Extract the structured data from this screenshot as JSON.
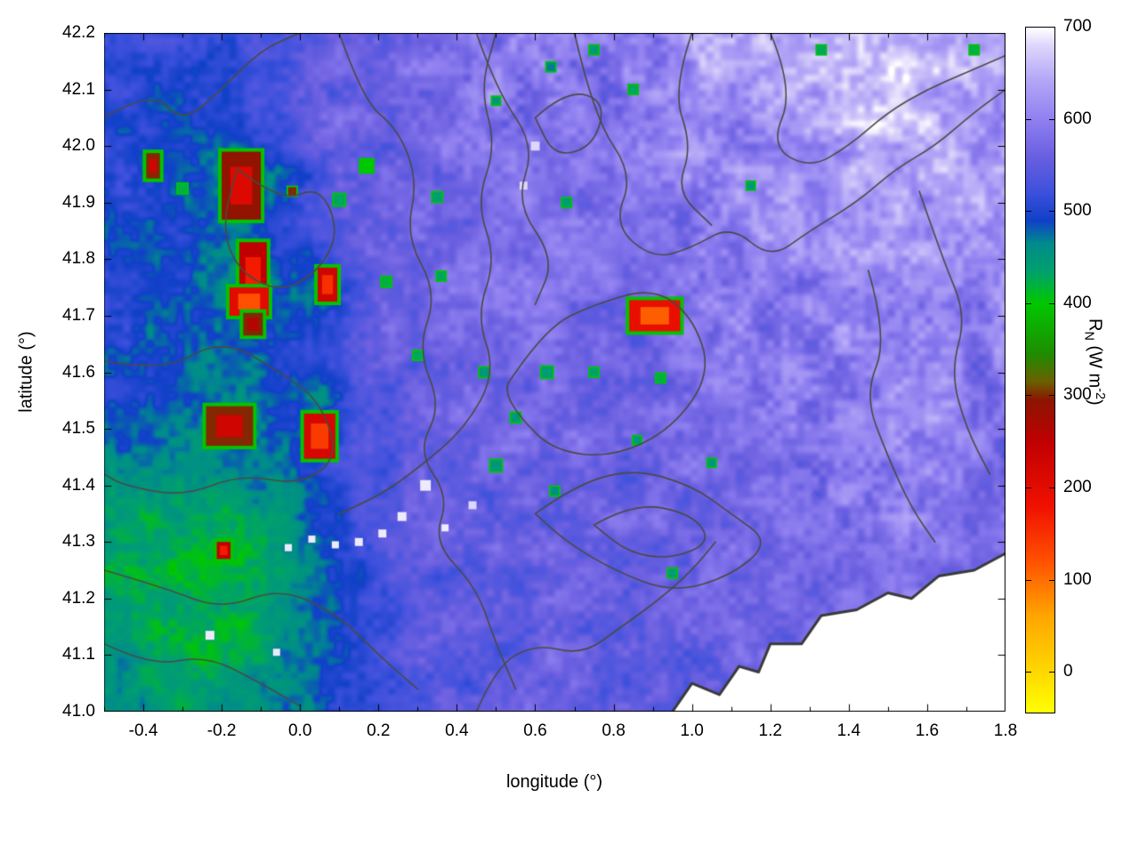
{
  "figure": {
    "xlabel": "longitude (°)",
    "ylabel": "latitude (°)",
    "cblabel": {
      "base": "R",
      "sub": "N",
      "mid": " (W m",
      "sup": "-2",
      "end": ")"
    }
  },
  "chart_data": {
    "type": "heatmap",
    "title": "",
    "xlabel": "longitude (°)",
    "ylabel": "latitude (°)",
    "xlim": [
      -0.5,
      1.8
    ],
    "ylim": [
      41.0,
      42.2
    ],
    "x_ticks": [
      "-0.4",
      "-0.2",
      "0.0",
      "0.2",
      "0.4",
      "0.6",
      "0.8",
      "1.0",
      "1.2",
      "1.4",
      "1.6",
      "1.8"
    ],
    "x_minor_step": 0.1,
    "y_ticks": [
      "41.0",
      "41.1",
      "41.2",
      "41.3",
      "41.4",
      "41.5",
      "41.6",
      "41.7",
      "41.8",
      "41.9",
      "42.0",
      "42.1",
      "42.2"
    ],
    "grid_on": false,
    "legend": "none",
    "colorbar": {
      "label": "R_N (W m^-2)",
      "position": "right",
      "ticks": [
        "0",
        "100",
        "200",
        "300",
        "400",
        "500",
        "600",
        "700"
      ],
      "range": [
        -45,
        700
      ]
    },
    "color_stops": [
      [
        -45,
        "#ffff00"
      ],
      [
        0,
        "#ffd700"
      ],
      [
        60,
        "#ffa500"
      ],
      [
        120,
        "#ff5000"
      ],
      [
        180,
        "#f01000"
      ],
      [
        250,
        "#c00000"
      ],
      [
        295,
        "#8b1500"
      ],
      [
        315,
        "#6b6000"
      ],
      [
        345,
        "#1e8c00"
      ],
      [
        400,
        "#00c800"
      ],
      [
        435,
        "#00a06e"
      ],
      [
        465,
        "#008b8b"
      ],
      [
        490,
        "#1040c8"
      ],
      [
        520,
        "#3c50dc"
      ],
      [
        560,
        "#6a5fe0"
      ],
      [
        600,
        "#8f7ff0"
      ],
      [
        645,
        "#b6a9f7"
      ],
      [
        680,
        "#ded6fb"
      ],
      [
        700,
        "#ffffff"
      ]
    ],
    "grid": {
      "lon0": -0.45,
      "dlon": 0.1,
      "lat0": 42.15,
      "dlat": 0.1,
      "values": [
        [
          515,
          510,
          505,
          515,
          530,
          555,
          565,
          575,
          580,
          590,
          600,
          595,
          590,
          600,
          615,
          635,
          650,
          660,
          665,
          670,
          665,
          655,
          645
        ],
        [
          505,
          490,
          500,
          515,
          535,
          555,
          565,
          570,
          575,
          585,
          595,
          585,
          580,
          590,
          600,
          610,
          620,
          635,
          645,
          655,
          650,
          640,
          630
        ],
        [
          505,
          495,
          480,
          430,
          490,
          525,
          555,
          565,
          570,
          580,
          585,
          580,
          575,
          580,
          590,
          600,
          610,
          615,
          625,
          635,
          635,
          630,
          620
        ],
        [
          500,
          495,
          490,
          470,
          500,
          530,
          550,
          565,
          570,
          575,
          580,
          580,
          575,
          575,
          585,
          595,
          600,
          605,
          610,
          615,
          620,
          618,
          612
        ],
        [
          500,
          492,
          485,
          440,
          490,
          470,
          540,
          560,
          570,
          575,
          580,
          585,
          580,
          575,
          580,
          590,
          595,
          600,
          605,
          610,
          610,
          605,
          600
        ],
        [
          495,
          490,
          485,
          490,
          498,
          520,
          540,
          555,
          565,
          570,
          575,
          580,
          572,
          540,
          575,
          585,
          590,
          595,
          600,
          605,
          605,
          600,
          595
        ],
        [
          490,
          485,
          478,
          450,
          488,
          460,
          530,
          545,
          555,
          565,
          570,
          575,
          570,
          565,
          575,
          580,
          585,
          590,
          595,
          600,
          600,
          595,
          590
        ],
        [
          468,
          462,
          458,
          465,
          480,
          510,
          530,
          545,
          555,
          560,
          565,
          570,
          565,
          560,
          570,
          575,
          580,
          585,
          590,
          595,
          595,
          590,
          585
        ],
        [
          448,
          438,
          432,
          440,
          462,
          492,
          520,
          540,
          550,
          555,
          560,
          565,
          560,
          555,
          565,
          570,
          575,
          580,
          585,
          590,
          588,
          584,
          580
        ],
        [
          428,
          418,
          414,
          424,
          450,
          480,
          510,
          535,
          545,
          550,
          555,
          560,
          555,
          550,
          560,
          565,
          570,
          575,
          580,
          583,
          583,
          580,
          576
        ],
        [
          438,
          428,
          420,
          430,
          455,
          485,
          515,
          535,
          545,
          550,
          555,
          558,
          554,
          550,
          558,
          562,
          566,
          570,
          575,
          578,
          578,
          576,
          574
        ],
        [
          452,
          446,
          436,
          446,
          466,
          490,
          515,
          535,
          545,
          550,
          554,
          558,
          554,
          550,
          556,
          560,
          564,
          568,
          572,
          576,
          578,
          576,
          574
        ]
      ]
    },
    "hotspots": [
      [
        -0.15,
        41.93,
        0.1,
        0.12,
        210
      ],
      [
        -0.12,
        41.77,
        0.07,
        0.12,
        170
      ],
      [
        -0.13,
        41.725,
        0.1,
        0.05,
        120
      ],
      [
        0.07,
        41.755,
        0.05,
        0.06,
        150
      ],
      [
        -0.18,
        41.505,
        0.12,
        0.07,
        230
      ],
      [
        0.05,
        41.487,
        0.08,
        0.08,
        140
      ],
      [
        0.905,
        41.7,
        0.13,
        0.055,
        110
      ],
      [
        -0.195,
        41.285,
        0.035,
        0.03,
        170
      ],
      [
        -0.375,
        41.965,
        0.035,
        0.045,
        230
      ],
      [
        -0.12,
        41.685,
        0.05,
        0.04,
        260
      ]
    ],
    "specks": [
      [
        0.17,
        41.965,
        400,
        14
      ],
      [
        0.1,
        41.905,
        430,
        12
      ],
      [
        0.35,
        41.91,
        440,
        10
      ],
      [
        -0.3,
        41.925,
        420,
        10
      ],
      [
        -0.02,
        41.92,
        300,
        9
      ],
      [
        0.22,
        41.76,
        420,
        10
      ],
      [
        0.3,
        41.63,
        430,
        9
      ],
      [
        0.47,
        41.6,
        450,
        10
      ],
      [
        0.63,
        41.6,
        440,
        12
      ],
      [
        0.5,
        41.435,
        450,
        12
      ],
      [
        0.65,
        41.39,
        460,
        9
      ],
      [
        0.92,
        41.59,
        420,
        9
      ],
      [
        0.95,
        41.245,
        440,
        9
      ],
      [
        1.33,
        42.17,
        430,
        9
      ],
      [
        1.72,
        42.17,
        420,
        9
      ],
      [
        1.15,
        41.93,
        450,
        8
      ],
      [
        0.5,
        42.08,
        450,
        8
      ],
      [
        0.64,
        42.14,
        470,
        9
      ],
      [
        -0.23,
        41.135,
        690,
        10
      ],
      [
        -0.06,
        41.105,
        690,
        8
      ],
      [
        0.32,
        41.4,
        690,
        12
      ],
      [
        0.26,
        41.345,
        690,
        10
      ],
      [
        0.21,
        41.315,
        690,
        9
      ],
      [
        0.15,
        41.3,
        690,
        9
      ],
      [
        0.09,
        41.295,
        690,
        8
      ],
      [
        0.03,
        41.305,
        690,
        8
      ],
      [
        -0.03,
        41.29,
        690,
        8
      ],
      [
        0.37,
        41.325,
        690,
        8
      ],
      [
        0.44,
        41.365,
        680,
        9
      ],
      [
        0.6,
        42.0,
        680,
        10
      ],
      [
        0.57,
        41.93,
        680,
        9
      ],
      [
        0.36,
        41.77,
        430,
        9
      ],
      [
        0.55,
        41.52,
        445,
        10
      ],
      [
        0.75,
        41.6,
        435,
        9
      ],
      [
        0.86,
        41.48,
        445,
        8
      ],
      [
        1.05,
        41.44,
        450,
        8
      ],
      [
        0.68,
        41.9,
        440,
        9
      ],
      [
        0.85,
        42.1,
        430,
        9
      ],
      [
        0.75,
        42.17,
        445,
        9
      ]
    ],
    "contours": [
      [
        [
          -0.5,
          42.05
        ],
        [
          -0.38,
          42.1
        ],
        [
          -0.3,
          42.04
        ],
        [
          -0.2,
          42.1
        ],
        [
          -0.1,
          42.17
        ],
        [
          0.0,
          42.2
        ]
      ],
      [
        [
          0.1,
          42.2
        ],
        [
          0.16,
          42.08
        ],
        [
          0.25,
          42.03
        ],
        [
          0.3,
          41.94
        ],
        [
          0.27,
          41.84
        ],
        [
          0.35,
          41.74
        ],
        [
          0.3,
          41.64
        ],
        [
          0.36,
          41.54
        ],
        [
          0.3,
          41.46
        ],
        [
          0.38,
          41.38
        ],
        [
          0.34,
          41.3
        ],
        [
          0.45,
          41.22
        ],
        [
          0.5,
          41.12
        ],
        [
          0.55,
          41.04
        ]
      ],
      [
        [
          0.45,
          42.2
        ],
        [
          0.5,
          42.1
        ],
        [
          0.6,
          42.0
        ],
        [
          0.55,
          41.9
        ],
        [
          0.65,
          41.8
        ],
        [
          0.6,
          41.72
        ]
      ],
      [
        [
          0.7,
          42.2
        ],
        [
          0.75,
          42.05
        ],
        [
          0.85,
          41.95
        ],
        [
          0.8,
          41.86
        ],
        [
          0.9,
          41.8
        ],
        [
          1.0,
          41.82
        ],
        [
          1.1,
          41.86
        ],
        [
          1.2,
          41.8
        ],
        [
          1.3,
          41.85
        ],
        [
          1.42,
          41.9
        ],
        [
          1.52,
          41.96
        ],
        [
          1.62,
          42.0
        ],
        [
          1.72,
          42.06
        ],
        [
          1.8,
          42.1
        ]
      ],
      [
        [
          0.55,
          41.6
        ],
        [
          0.63,
          41.68
        ],
        [
          0.75,
          41.72
        ],
        [
          0.9,
          41.75
        ],
        [
          1.0,
          41.7
        ],
        [
          1.05,
          41.6
        ],
        [
          0.95,
          41.5
        ],
        [
          0.8,
          41.45
        ],
        [
          0.65,
          41.46
        ],
        [
          0.56,
          41.52
        ],
        [
          0.52,
          41.57
        ],
        [
          0.55,
          41.6
        ]
      ],
      [
        [
          -0.5,
          41.62
        ],
        [
          -0.35,
          41.6
        ],
        [
          -0.2,
          41.66
        ],
        [
          -0.05,
          41.6
        ],
        [
          0.05,
          41.55
        ],
        [
          0.1,
          41.45
        ],
        [
          0.0,
          41.4
        ],
        [
          -0.15,
          41.42
        ],
        [
          -0.3,
          41.38
        ],
        [
          -0.45,
          41.4
        ],
        [
          -0.5,
          41.42
        ]
      ],
      [
        [
          -0.5,
          41.25
        ],
        [
          -0.35,
          41.22
        ],
        [
          -0.2,
          41.18
        ],
        [
          -0.05,
          41.22
        ],
        [
          0.1,
          41.17
        ],
        [
          0.2,
          41.1
        ],
        [
          0.3,
          41.04
        ]
      ],
      [
        [
          -0.5,
          41.12
        ],
        [
          -0.38,
          41.08
        ],
        [
          -0.24,
          41.1
        ],
        [
          -0.1,
          41.05
        ],
        [
          0.0,
          41.01
        ]
      ],
      [
        [
          0.6,
          41.35
        ],
        [
          0.7,
          41.4
        ],
        [
          0.85,
          41.43
        ],
        [
          1.0,
          41.4
        ],
        [
          1.1,
          41.35
        ],
        [
          1.2,
          41.3
        ],
        [
          1.1,
          41.24
        ],
        [
          0.95,
          41.21
        ],
        [
          0.8,
          41.25
        ],
        [
          0.68,
          41.3
        ],
        [
          0.6,
          41.35
        ]
      ],
      [
        [
          0.75,
          41.33
        ],
        [
          0.85,
          41.37
        ],
        [
          1.0,
          41.35
        ],
        [
          1.05,
          41.3
        ],
        [
          0.95,
          41.27
        ],
        [
          0.84,
          41.28
        ],
        [
          0.75,
          41.33
        ]
      ],
      [
        [
          1.45,
          41.78
        ],
        [
          1.5,
          41.66
        ],
        [
          1.44,
          41.56
        ],
        [
          1.5,
          41.45
        ],
        [
          1.56,
          41.36
        ],
        [
          1.62,
          41.3
        ]
      ],
      [
        [
          1.58,
          41.92
        ],
        [
          1.64,
          41.8
        ],
        [
          1.7,
          41.7
        ],
        [
          1.66,
          41.6
        ],
        [
          1.7,
          41.5
        ],
        [
          1.76,
          41.42
        ]
      ],
      [
        [
          0.6,
          42.05
        ],
        [
          0.68,
          42.1
        ],
        [
          0.78,
          42.08
        ],
        [
          0.75,
          42.0
        ],
        [
          0.65,
          41.98
        ],
        [
          0.6,
          42.05
        ]
      ],
      [
        [
          -0.16,
          41.96
        ],
        [
          -0.05,
          41.9
        ],
        [
          0.05,
          41.93
        ],
        [
          0.1,
          41.85
        ],
        [
          0.05,
          41.78
        ],
        [
          -0.05,
          41.74
        ],
        [
          -0.16,
          41.78
        ],
        [
          -0.2,
          41.86
        ],
        [
          -0.16,
          41.96
        ]
      ],
      [
        [
          1.0,
          42.2
        ],
        [
          0.95,
          42.1
        ],
        [
          1.0,
          42.0
        ],
        [
          0.96,
          41.92
        ],
        [
          1.05,
          41.86
        ]
      ],
      [
        [
          1.2,
          42.2
        ],
        [
          1.26,
          42.1
        ],
        [
          1.2,
          42.0
        ],
        [
          1.3,
          41.96
        ],
        [
          1.4,
          42.0
        ],
        [
          1.5,
          42.06
        ],
        [
          1.6,
          42.1
        ],
        [
          1.7,
          42.13
        ],
        [
          1.8,
          42.16
        ]
      ],
      [
        [
          0.45,
          41.0
        ],
        [
          0.5,
          41.08
        ],
        [
          0.6,
          41.12
        ],
        [
          0.72,
          41.1
        ],
        [
          0.82,
          41.15
        ],
        [
          0.92,
          41.2
        ],
        [
          1.0,
          41.25
        ],
        [
          1.06,
          41.3
        ]
      ],
      [
        [
          0.1,
          41.35
        ],
        [
          0.2,
          41.38
        ],
        [
          0.3,
          41.43
        ],
        [
          0.42,
          41.5
        ],
        [
          0.5,
          41.6
        ],
        [
          0.45,
          41.7
        ],
        [
          0.5,
          41.8
        ],
        [
          0.45,
          41.9
        ],
        [
          0.5,
          42.0
        ],
        [
          0.46,
          42.1
        ],
        [
          0.5,
          42.2
        ]
      ]
    ],
    "coastline": [
      [
        0.95,
        41.0
      ],
      [
        1.0,
        41.05
      ],
      [
        1.07,
        41.03
      ],
      [
        1.12,
        41.08
      ],
      [
        1.17,
        41.07
      ],
      [
        1.2,
        41.12
      ],
      [
        1.28,
        41.12
      ],
      [
        1.33,
        41.17
      ],
      [
        1.42,
        41.18
      ],
      [
        1.5,
        41.21
      ],
      [
        1.56,
        41.2
      ],
      [
        1.63,
        41.24
      ],
      [
        1.72,
        41.25
      ],
      [
        1.8,
        41.28
      ]
    ]
  }
}
